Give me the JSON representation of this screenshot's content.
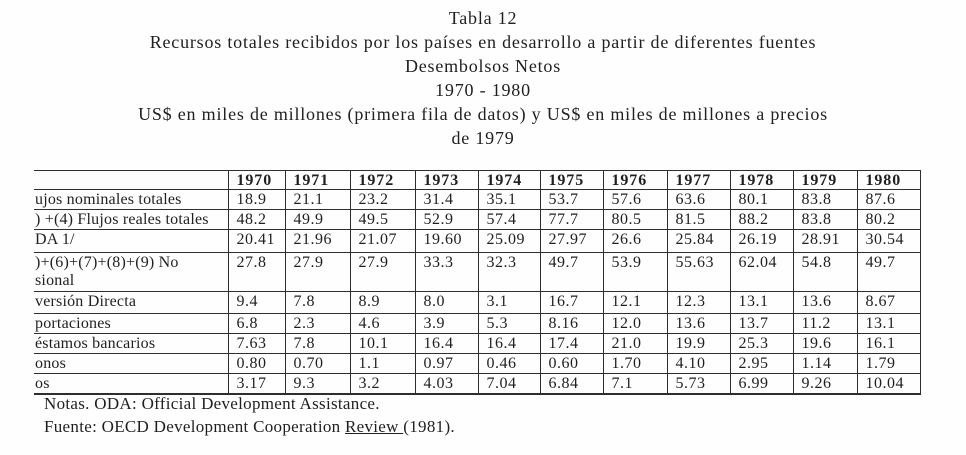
{
  "page": {
    "background": "#fefefe",
    "text_color": "#1f1f1f",
    "border_color": "#2e2e2e"
  },
  "title": {
    "lines": [
      "Tabla 12",
      "Recursos totales recibidos por los países en desarrollo a partir de diferentes fuentes",
      "Desembolsos Netos",
      "1970 - 1980",
      "US$ en miles de millones (primera fila de datos) y US$ en miles de millones a precios",
      "de 1979"
    ]
  },
  "table": {
    "year_headers": [
      "1970",
      "1971",
      "1972",
      "1973",
      "1974",
      "1975",
      "1976",
      "1977",
      "1978",
      "1979",
      "1980"
    ],
    "rows": [
      {
        "label": "ujos nominales totales",
        "label_line2": "",
        "values": [
          "18.9",
          "21.1",
          "23.2",
          "31.4",
          "35.1",
          "53.7",
          "57.6",
          "63.6",
          "80.1",
          "83.8",
          "87.6"
        ]
      },
      {
        "label": ") +(4) Flujos reales totales",
        "label_line2": "",
        "values": [
          "48.2",
          "49.9",
          "49.5",
          "52.9",
          "57.4",
          "77.7",
          "80.5",
          "81.5",
          "88.2",
          "83.8",
          "80.2"
        ]
      },
      {
        "label": "DA 1/",
        "label_line2": "",
        "values": [
          "20.41",
          "21.96",
          "21.07",
          "19.60",
          "25.09",
          "27.97",
          "26.6",
          "25.84",
          "26.19",
          "28.91",
          "30.54"
        ]
      },
      {
        "label": ")+(6)+(7)+(8)+(9) No",
        "label_line2": "sional",
        "values": [
          "27.8",
          "27.9",
          "27.9",
          "33.3",
          "32.3",
          "49.7",
          "53.9",
          "55.63",
          "62.04",
          "54.8",
          "49.7"
        ]
      },
      {
        "label": "versión Directa",
        "label_line2": "",
        "values": [
          "9.4",
          "7.8",
          "8.9",
          "8.0",
          "3.1",
          "16.7",
          "12.1",
          "12.3",
          "13.1",
          "13.6",
          "8.67"
        ]
      },
      {
        "label": "portaciones",
        "label_line2": "",
        "values": [
          "6.8",
          "2.3",
          "4.6",
          "3.9",
          "5.3",
          "8.16",
          "12.0",
          "13.6",
          "13.7",
          "11.2",
          "13.1"
        ]
      },
      {
        "label": "éstamos bancarios",
        "label_line2": "",
        "values": [
          "7.63",
          "7.8",
          "10.1",
          "16.4",
          "16.4",
          "17.4",
          "21.0",
          "19.9",
          "25.3",
          "19.6",
          "16.1"
        ]
      },
      {
        "label": "onos",
        "label_line2": "",
        "values": [
          "0.80",
          "0.70",
          "1.1",
          "0.97",
          "0.46",
          "0.60",
          "1.70",
          "4.10",
          "2.95",
          "1.14",
          "1.79"
        ]
      },
      {
        "label": "os",
        "label_line2": "",
        "values": [
          "3.17",
          "9.3",
          "3.2",
          "4.03",
          "7.04",
          "6.84",
          "7.1",
          "5.73",
          "6.99",
          "9.26",
          "10.04"
        ]
      }
    ]
  },
  "notes": {
    "line1": "Notas. ODA: Official Development Assistance.",
    "fuente_prefix": "Fuente: OECD Development Cooperation ",
    "fuente_underlined": "Review ",
    "fuente_suffix": "(1981)."
  }
}
